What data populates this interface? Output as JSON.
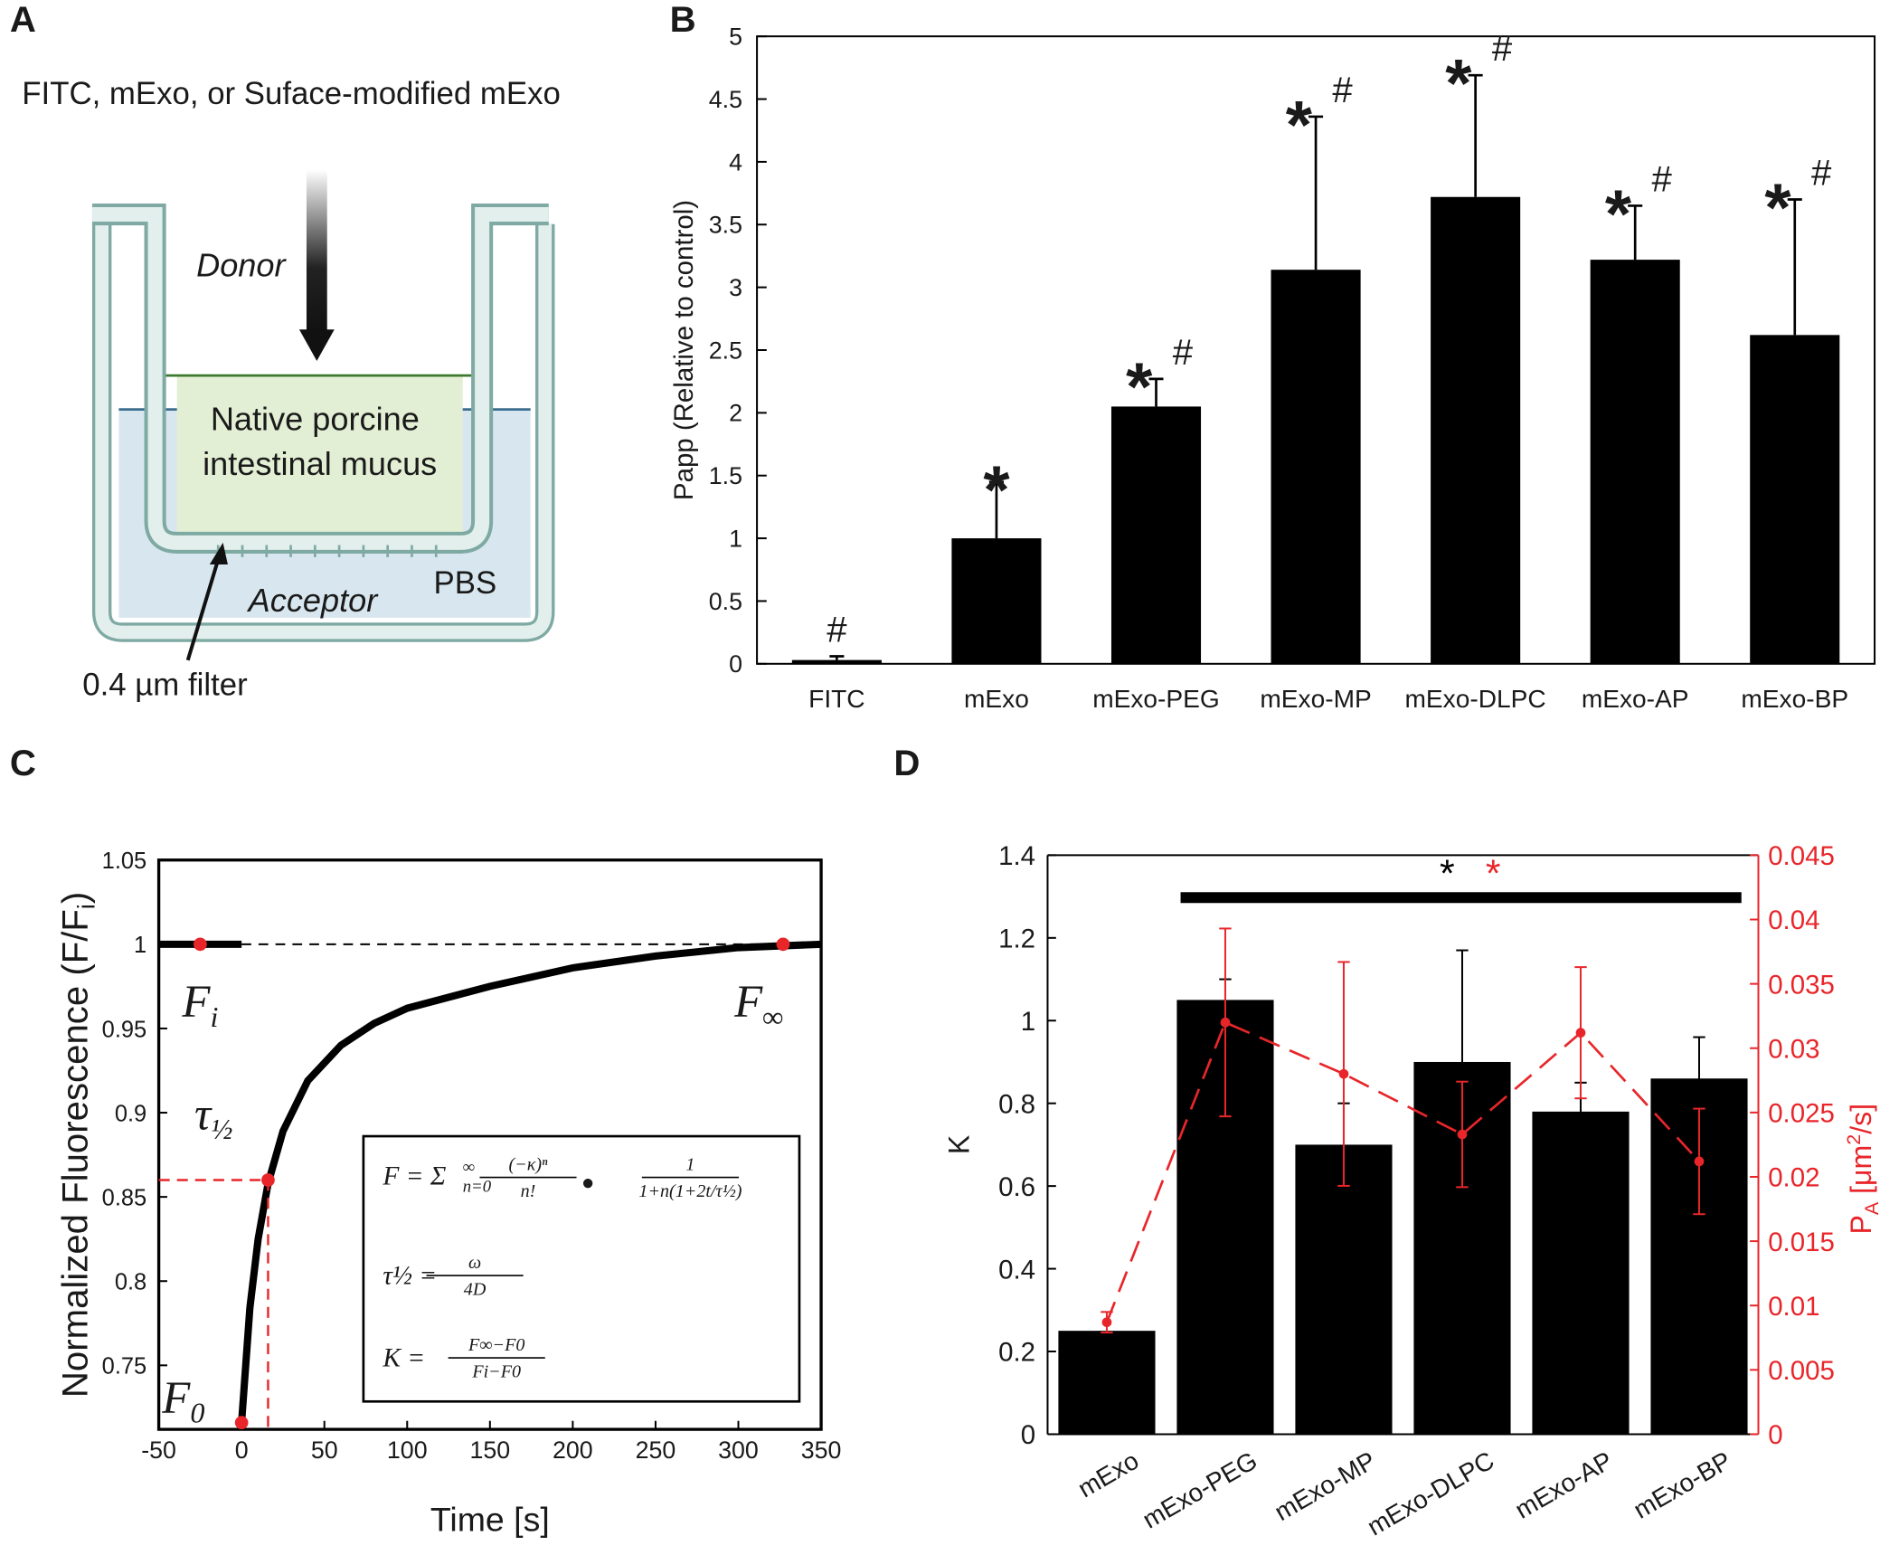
{
  "panel_labels": [
    "A",
    "B",
    "C",
    "D"
  ],
  "diagram": {
    "title": "FITC, mExo, or Suface-modified mExo",
    "donor": "Donor",
    "mucus": [
      "Native porcine",
      "intestinal mucus"
    ],
    "buffer": "PBS",
    "acceptor": "Acceptor",
    "filter": "0.4 µm filter"
  },
  "chart_data": [
    {
      "type": "bar",
      "ylabel": "Papp (Relative to control)",
      "categories": [
        "FITC",
        "mExo",
        "mExo-PEG",
        "mExo-MP",
        "mExo-DLPC",
        "mExo-AP",
        "mExo-BP"
      ],
      "values": [
        0.03,
        1.0,
        2.05,
        3.14,
        3.72,
        3.22,
        2.62
      ],
      "errors": [
        0.03,
        0.45,
        0.22,
        1.22,
        0.97,
        0.43,
        1.08
      ],
      "color": "#000000",
      "ylim": [
        0,
        5
      ],
      "yticks": [
        0,
        0.5,
        1,
        1.5,
        2,
        2.5,
        3,
        3.5,
        4,
        4.5,
        5
      ],
      "star_labels": [
        null,
        "*",
        "*",
        "*",
        "*",
        "*",
        "*"
      ],
      "hash_labels": [
        "#",
        null,
        "#",
        "#",
        "#",
        "#",
        "#"
      ]
    },
    {
      "type": "line",
      "xlabel": "Time [s]",
      "ylabel": {
        "text": "Normalized Fluorescence (F/F",
        "sub": "i",
        "end": ")"
      },
      "xlim": [
        -50,
        350
      ],
      "xticks": [
        -50,
        0,
        50,
        100,
        150,
        200,
        250,
        300,
        350
      ],
      "ylim": [
        0.712,
        1.05
      ],
      "yticks": [
        0.75,
        0.8,
        0.85,
        0.9,
        0.95,
        1,
        1.05
      ],
      "series": [
        {
          "color": "#000000",
          "dash": false,
          "x": [
            -50,
            0
          ],
          "values": [
            1,
            1
          ]
        },
        {
          "color": "#000000",
          "dash": true,
          "x": [
            0,
            350
          ],
          "values": [
            1,
            1
          ]
        },
        {
          "color": "#000000",
          "dash": false,
          "x": [
            0,
            5,
            10,
            16,
            25,
            40,
            60,
            80,
            100,
            150,
            200,
            250,
            300,
            350
          ],
          "values": [
            0.716,
            0.784,
            0.825,
            0.858,
            0.889,
            0.919,
            0.94,
            0.953,
            0.962,
            0.975,
            0.986,
            0.993,
            0.998,
            1.0
          ]
        }
      ],
      "points": {
        "color": "#e8262a",
        "x": [
          -25,
          327,
          16,
          0
        ],
        "values": [
          1,
          1,
          0.86,
          0.716
        ],
        "labels": [
          {
            "main": "F",
            "sub": "i"
          },
          {
            "main": "F",
            "sub": "∞"
          },
          {
            "main": "τ",
            "sub": "½"
          },
          {
            "main": "F",
            "sub": "0"
          }
        ]
      },
      "equations": [
        {
          "lhs": "F = Σ",
          "sup": "∞",
          "sub": "n=0",
          "frac1": [
            "(−κ)ⁿ",
            "n!"
          ],
          "op": "●",
          "frac2": [
            "1",
            "1+n(1+2t/τ½)"
          ]
        },
        {
          "lhs": "τ½ =",
          "frac": [
            "ω",
            "4D"
          ]
        },
        {
          "lhs": "K =",
          "frac": [
            "F∞−F0",
            "Fi−F0"
          ]
        }
      ]
    },
    {
      "type": "bar+line",
      "ylabel": "K",
      "y2label": {
        "main": "P",
        "sub": "A",
        "unit": " [μm",
        "sup": "2",
        "end": "/s]"
      },
      "categories": [
        "mExo",
        "mExo-PEG",
        "mExo-MP",
        "mExo-DLPC",
        "mExo-AP",
        "mExo-BP"
      ],
      "series": [
        {
          "type": "bar",
          "color": "#000000",
          "values": [
            0.25,
            1.05,
            0.7,
            0.9,
            0.78,
            0.86
          ],
          "errors": [
            null,
            0.05,
            0.1,
            0.27,
            0.07,
            0.1
          ]
        },
        {
          "type": "line",
          "axis": "y2",
          "color": "#e8262a",
          "dash": true,
          "values": [
            0.0087,
            0.032,
            0.028,
            0.0233,
            0.0312,
            0.0212
          ],
          "errors": [
            0.0008,
            0.0073,
            0.0087,
            0.0041,
            0.0051,
            0.0041
          ]
        }
      ],
      "ylim": [
        0,
        1.4
      ],
      "yticks": [
        0,
        0.2,
        0.4,
        0.6,
        0.8,
        1,
        1.2,
        1.4
      ],
      "y2lim": [
        0,
        0.045
      ],
      "y2ticks": [
        0,
        0.005,
        0.01,
        0.015,
        0.02,
        0.025,
        0.03,
        0.035,
        0.04,
        0.045
      ],
      "significance": {
        "labels": [
          "*",
          "*"
        ],
        "colors": [
          "#000000",
          "#e8262a"
        ]
      }
    }
  ]
}
